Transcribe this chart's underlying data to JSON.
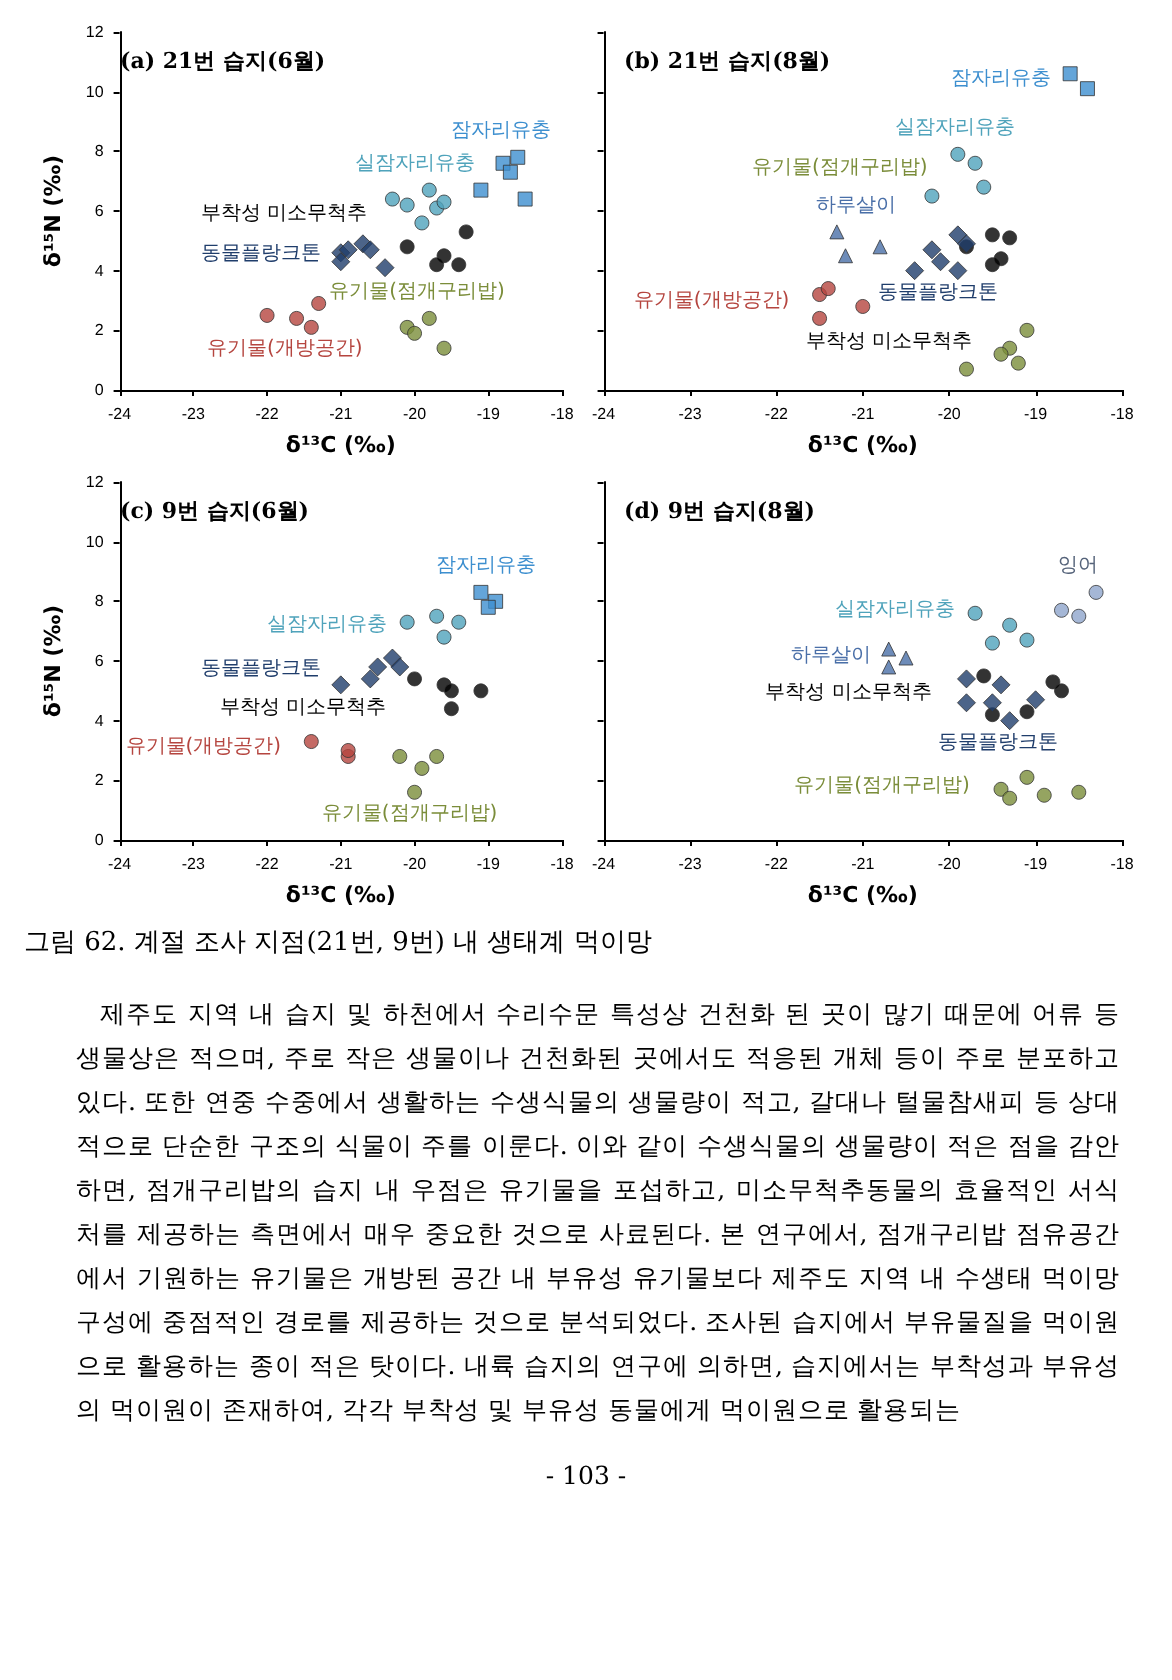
{
  "chart_data": [
    {
      "type": "scatter",
      "title": "(a) 21번 습지(6월)",
      "xlabel": "δ¹³C (‰)",
      "ylabel": "δ¹⁵N (‰)",
      "xlim": [
        -24,
        -18
      ],
      "xticks": [
        -24,
        -23,
        -22,
        -21,
        -20,
        -19,
        -18
      ],
      "ylim": [
        0,
        12
      ],
      "yticks": [
        0,
        2,
        4,
        6,
        8,
        10,
        12
      ],
      "grid": false,
      "legend": false,
      "series": [
        {
          "name": "잠자리유충",
          "color": "#3d8fcf",
          "marker": "square",
          "x": [
            -18.6,
            -18.8,
            -18.7,
            -19.1,
            -18.5
          ],
          "values": [
            7.8,
            7.6,
            7.3,
            6.7,
            6.4
          ]
        },
        {
          "name": "실잠자리유충",
          "color": "#4fa3bb",
          "marker": "circle",
          "x": [
            -20.3,
            -20.1,
            -19.8,
            -19.7,
            -19.6,
            -19.9
          ],
          "values": [
            6.4,
            6.2,
            6.7,
            6.1,
            6.3,
            5.6
          ]
        },
        {
          "name": "동물플랑크톤",
          "color": "#1f3d6b",
          "marker": "diamond",
          "x": [
            -21.0,
            -20.9,
            -21.0,
            -20.7,
            -20.6,
            -20.4
          ],
          "values": [
            4.6,
            4.7,
            4.3,
            4.9,
            4.7,
            4.1
          ]
        },
        {
          "name": "부착성 미소무척추",
          "color": "#000000",
          "marker": "circle",
          "x": [
            -20.1,
            -19.6,
            -19.7,
            -19.4,
            -19.3
          ],
          "values": [
            4.8,
            4.5,
            4.2,
            4.2,
            5.3
          ]
        },
        {
          "name": "유기물(개방공간)",
          "color": "#b5453f",
          "marker": "circle",
          "x": [
            -22.0,
            -21.6,
            -21.4,
            -21.3
          ],
          "values": [
            2.5,
            2.4,
            2.1,
            2.9
          ]
        },
        {
          "name": "유기물(점개구리밥)",
          "color": "#7b8d3a",
          "marker": "circle",
          "x": [
            -20.1,
            -20.0,
            -19.8,
            -19.6
          ],
          "values": [
            2.1,
            1.9,
            2.4,
            1.4
          ]
        }
      ]
    },
    {
      "type": "scatter",
      "title": "(b) 21번 습지(8월)",
      "xlabel": "δ¹³C (‰)",
      "xlim": [
        -24,
        -18
      ],
      "xticks": [
        -24,
        -23,
        -22,
        -21,
        -20,
        -19,
        -18
      ],
      "ylim": [
        0,
        12
      ],
      "yticks": [
        0,
        2,
        4,
        6,
        8,
        10,
        12
      ],
      "tick_labels": "x",
      "grid": false,
      "legend": false,
      "series": [
        {
          "name": "잠자리유충",
          "color": "#3d8fcf",
          "marker": "square",
          "x": [
            -18.6,
            -18.4
          ],
          "values": [
            10.6,
            10.1
          ]
        },
        {
          "name": "실잠자리유충",
          "color": "#4fa3bb",
          "marker": "circle",
          "x": [
            -19.9,
            -19.7,
            -19.6,
            -20.2
          ],
          "values": [
            7.9,
            7.6,
            6.8,
            6.5
          ]
        },
        {
          "name": "하루살이",
          "color": "#4a6fa8",
          "marker": "triangle",
          "x": [
            -21.3,
            -21.2,
            -20.8
          ],
          "values": [
            5.3,
            4.5,
            4.8
          ]
        },
        {
          "name": "동물플랑크톤",
          "color": "#1f3d6b",
          "marker": "diamond",
          "x": [
            -19.9,
            -20.2,
            -19.8,
            -20.1,
            -20.4,
            -19.9
          ],
          "values": [
            5.2,
            4.7,
            4.9,
            4.3,
            4.0,
            4.0
          ]
        },
        {
          "name": "부착성 미소무척추",
          "color": "#000000",
          "marker": "circle",
          "x": [
            -19.5,
            -19.3,
            -19.8,
            -19.5,
            -19.4
          ],
          "values": [
            5.2,
            5.1,
            4.8,
            4.2,
            4.4
          ]
        },
        {
          "name": "유기물(개방공간)",
          "color": "#b5453f",
          "marker": "circle",
          "x": [
            -21.5,
            -21.4,
            -21.5,
            -21.0
          ],
          "values": [
            3.2,
            3.4,
            2.4,
            2.8
          ]
        },
        {
          "name": "유기물(점개구리밥)",
          "color": "#7b8d3a",
          "marker": "circle",
          "x": [
            -19.1,
            -19.3,
            -19.4,
            -19.2,
            -19.8
          ],
          "values": [
            2.0,
            1.4,
            1.2,
            0.9,
            0.7
          ]
        }
      ]
    },
    {
      "type": "scatter",
      "title": "(c) 9번 습지(6월)",
      "xlabel": "δ¹³C (‰)",
      "ylabel": "δ¹⁵N (‰)",
      "xlim": [
        -24,
        -18
      ],
      "xticks": [
        -24,
        -23,
        -22,
        -21,
        -20,
        -19,
        -18
      ],
      "ylim": [
        0,
        12
      ],
      "yticks": [
        0,
        2,
        4,
        6,
        8,
        10,
        12
      ],
      "grid": false,
      "legend": false,
      "series": [
        {
          "name": "잠자리유충",
          "color": "#3d8fcf",
          "marker": "square",
          "x": [
            -19.1,
            -18.9,
            -19.0
          ],
          "values": [
            8.3,
            8.0,
            7.8
          ]
        },
        {
          "name": "실잠자리유충",
          "color": "#4fa3bb",
          "marker": "circle",
          "x": [
            -20.1,
            -19.7,
            -19.4,
            -19.6
          ],
          "values": [
            7.3,
            7.5,
            7.3,
            6.8
          ]
        },
        {
          "name": "동물플랑크톤",
          "color": "#1f3d6b",
          "marker": "diamond",
          "x": [
            -21.0,
            -20.6,
            -20.5,
            -20.3,
            -20.2
          ],
          "values": [
            5.2,
            5.4,
            5.8,
            6.1,
            5.8
          ]
        },
        {
          "name": "부착성 미소무척추",
          "color": "#000000",
          "marker": "circle",
          "x": [
            -20.0,
            -19.6,
            -19.5,
            -19.5,
            -19.1
          ],
          "values": [
            5.4,
            5.2,
            5.0,
            4.4,
            5.0
          ]
        },
        {
          "name": "유기물(개방공간)",
          "color": "#b5453f",
          "marker": "circle",
          "x": [
            -21.4,
            -20.9,
            -20.9
          ],
          "values": [
            3.3,
            2.8,
            3.0
          ]
        },
        {
          "name": "유기물(점개구리밥)",
          "color": "#7b8d3a",
          "marker": "circle",
          "x": [
            -20.2,
            -19.9,
            -19.7,
            -20.0
          ],
          "values": [
            2.8,
            2.4,
            2.8,
            1.6
          ]
        }
      ]
    },
    {
      "type": "scatter",
      "title": "(d) 9번 습지(8월)",
      "xlabel": "δ¹³C (‰)",
      "xlim": [
        -24,
        -18
      ],
      "xticks": [
        -24,
        -23,
        -22,
        -21,
        -20,
        -19,
        -18
      ],
      "ylim": [
        0,
        12
      ],
      "yticks": [
        0,
        2,
        4,
        6,
        8,
        10,
        12
      ],
      "tick_labels": "x",
      "grid": false,
      "legend": false,
      "series": [
        {
          "name": "잉어",
          "color": "#8ea5cc",
          "marker": "circle",
          "x": [
            -18.3,
            -18.7,
            -18.5
          ],
          "values": [
            8.3,
            7.7,
            7.5
          ]
        },
        {
          "name": "실잠자리유충",
          "color": "#4fa3bb",
          "marker": "circle",
          "x": [
            -19.7,
            -19.3,
            -19.5,
            -19.1
          ],
          "values": [
            7.6,
            7.2,
            6.6,
            6.7
          ]
        },
        {
          "name": "하루살이",
          "color": "#4a6fa8",
          "marker": "triangle",
          "x": [
            -20.7,
            -20.7,
            -20.5
          ],
          "values": [
            6.4,
            5.8,
            6.1
          ]
        },
        {
          "name": "동물플랑크톤",
          "color": "#1f3d6b",
          "marker": "diamond",
          "x": [
            -19.8,
            -19.4,
            -19.8,
            -19.5,
            -19.0,
            -19.3
          ],
          "values": [
            5.4,
            5.2,
            4.6,
            4.6,
            4.7,
            4.0
          ]
        },
        {
          "name": "부착성 미소무척추",
          "color": "#000000",
          "marker": "circle",
          "x": [
            -19.6,
            -18.8,
            -18.7,
            -19.5,
            -19.1
          ],
          "values": [
            5.5,
            5.3,
            5.0,
            4.2,
            4.3
          ]
        },
        {
          "name": "유기물(점개구리밥)",
          "color": "#7b8d3a",
          "marker": "circle",
          "x": [
            -19.1,
            -19.4,
            -19.3,
            -18.9,
            -18.5
          ],
          "values": [
            2.1,
            1.7,
            1.4,
            1.5,
            1.6
          ]
        }
      ]
    },
    {
      "type": "other",
      "title": "그림 62. 계절 조사 지점(21번, 9번) 내 생태계 먹이망",
      "annotations": [
        "제주도 지역 내 습지 및 하천에서 수리수문 특성상 건천화 된 곳이 많기 때문에 어류 등 생물상은 적으며, 주로 작은 생물이나 건천화된 곳에서도 적응된 개체 등이 주로 분포하고 있다. 또한 연중 수중에서 생활하는 수생식물의 생물량이 적고, 갈대나 털물참새피 등 상대적으로 단순한 구조의 식물이 주를 이룬다. 이와 같이 수생식물의 생물량이 적은 점을 감안하면, 점개구리밥의 습지 내 우점은 유기물을 포섭하고, 미소무척추동물의 효율적인 서식처를 제공하는 측면에서 매우 중요한 것으로 사료된다. 본 연구에서, 점개구리밥 점유공간에서 기원하는 유기물은 개방된 공간 내 부유성 유기물보다 제주도 지역 내 수생태 먹이망 구성에 중점적인 경로를 제공하는 것으로 분석되었다. 조사된 습지에서 부유물질을 먹이원으로 활용하는 종이 적은 탓이다. 내륙 습지의 연구에 의하면, 습지에서는 부착성과 부유성의 먹이원이 존재하여, 각각 부착성 및 부유성 동물에게 먹이원으로 활용되는",
        "- 103 -"
      ]
    }
  ]
}
